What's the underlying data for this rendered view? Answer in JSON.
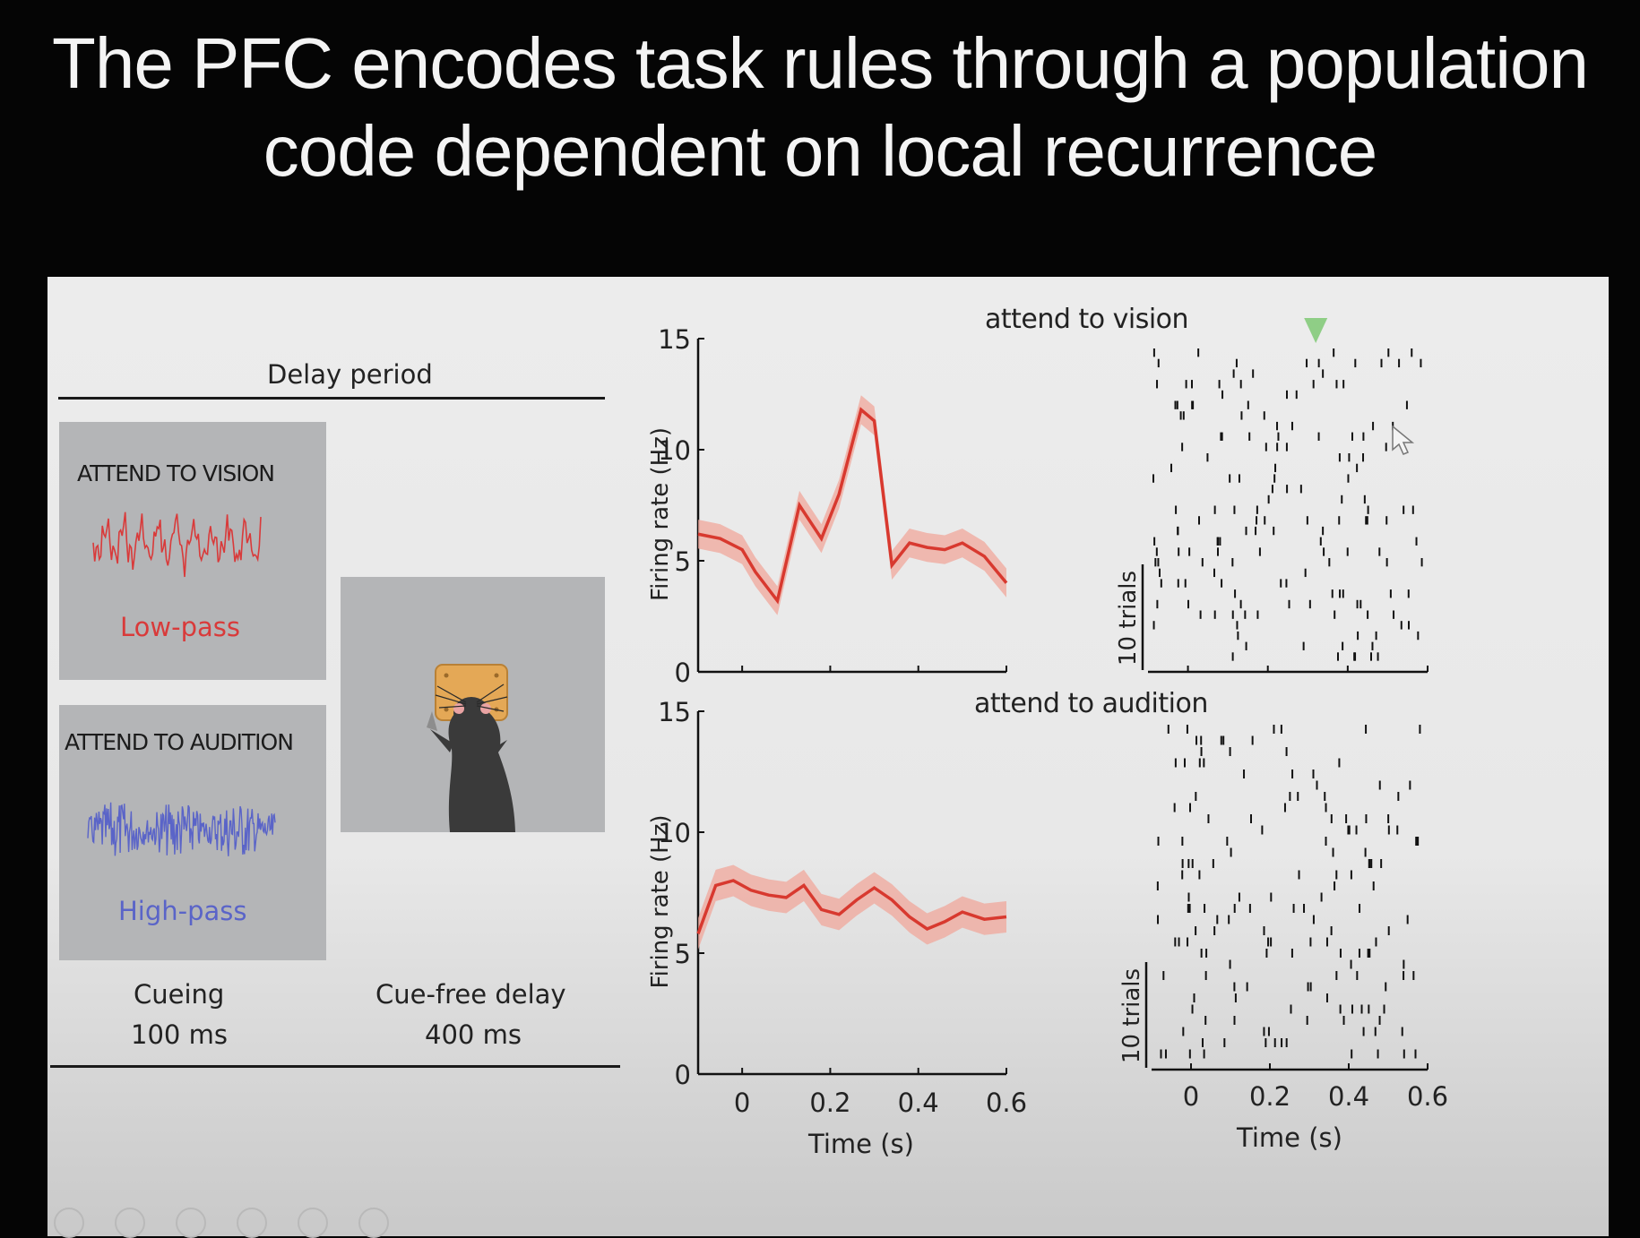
{
  "slide_title": "The PFC encodes task rules through a population code dependent on local recurrence",
  "left": {
    "delay_period": "Delay period",
    "vision_panel": {
      "heading": "ATTEND TO VISION",
      "filter": "Low-pass",
      "color": "#d93a3a"
    },
    "audition_panel": {
      "heading": "ATTEND TO AUDITION",
      "filter": "High-pass",
      "color": "#5a64c8"
    },
    "cueing": "Cueing",
    "cueing_duration": "100 ms",
    "cue_free_delay": "Cue-free delay",
    "cue_free_duration": "400 ms"
  },
  "chart_data": [
    {
      "type": "line",
      "title": "attend to vision",
      "xlabel": "Time (s)",
      "ylabel": "Firing rate (Hz)",
      "xlim": [
        -0.1,
        0.6
      ],
      "ylim": [
        0,
        15
      ],
      "yticks": [
        "0",
        "5",
        "10",
        "15"
      ],
      "series": [
        {
          "color": "#d8392f",
          "x": [
            -0.1,
            -0.05,
            0.0,
            0.03,
            0.08,
            0.13,
            0.18,
            0.22,
            0.27,
            0.3,
            0.34,
            0.38,
            0.42,
            0.46,
            0.5,
            0.55,
            0.6
          ],
          "y": [
            6.2,
            6.0,
            5.5,
            4.5,
            3.2,
            7.5,
            6.0,
            8.0,
            11.8,
            11.3,
            4.8,
            5.8,
            5.6,
            5.5,
            5.8,
            5.2,
            4.0
          ]
        }
      ]
    },
    {
      "type": "scatter",
      "title": "attend to vision",
      "xlabel": "Time (s)",
      "ylabel": "10 trials",
      "xlim": [
        -0.1,
        0.6
      ],
      "marker": "#8fce86"
    },
    {
      "type": "line",
      "title": "attend to audition",
      "xlabel": "Time (s)",
      "ylabel": "Firing rate (Hz)",
      "xlim": [
        -0.1,
        0.6
      ],
      "ylim": [
        0,
        15
      ],
      "xticks": [
        "0",
        "0.2",
        "0.4",
        "0.6"
      ],
      "yticks": [
        "0",
        "5",
        "10",
        "15"
      ],
      "series": [
        {
          "color": "#d8392f",
          "x": [
            -0.1,
            -0.06,
            -0.02,
            0.02,
            0.06,
            0.1,
            0.14,
            0.18,
            0.22,
            0.26,
            0.3,
            0.34,
            0.38,
            0.42,
            0.46,
            0.5,
            0.55,
            0.6
          ],
          "y": [
            5.8,
            7.8,
            8.0,
            7.6,
            7.4,
            7.3,
            7.8,
            6.8,
            6.6,
            7.2,
            7.7,
            7.2,
            6.5,
            6.0,
            6.3,
            6.7,
            6.4,
            6.5
          ]
        }
      ]
    },
    {
      "type": "scatter",
      "title": "attend to audition",
      "xlabel": "Time (s)",
      "ylabel": "10 trials",
      "xlim": [
        -0.1,
        0.6
      ],
      "xticks": [
        "0",
        "0.2",
        "0.4",
        "0.6"
      ]
    }
  ]
}
